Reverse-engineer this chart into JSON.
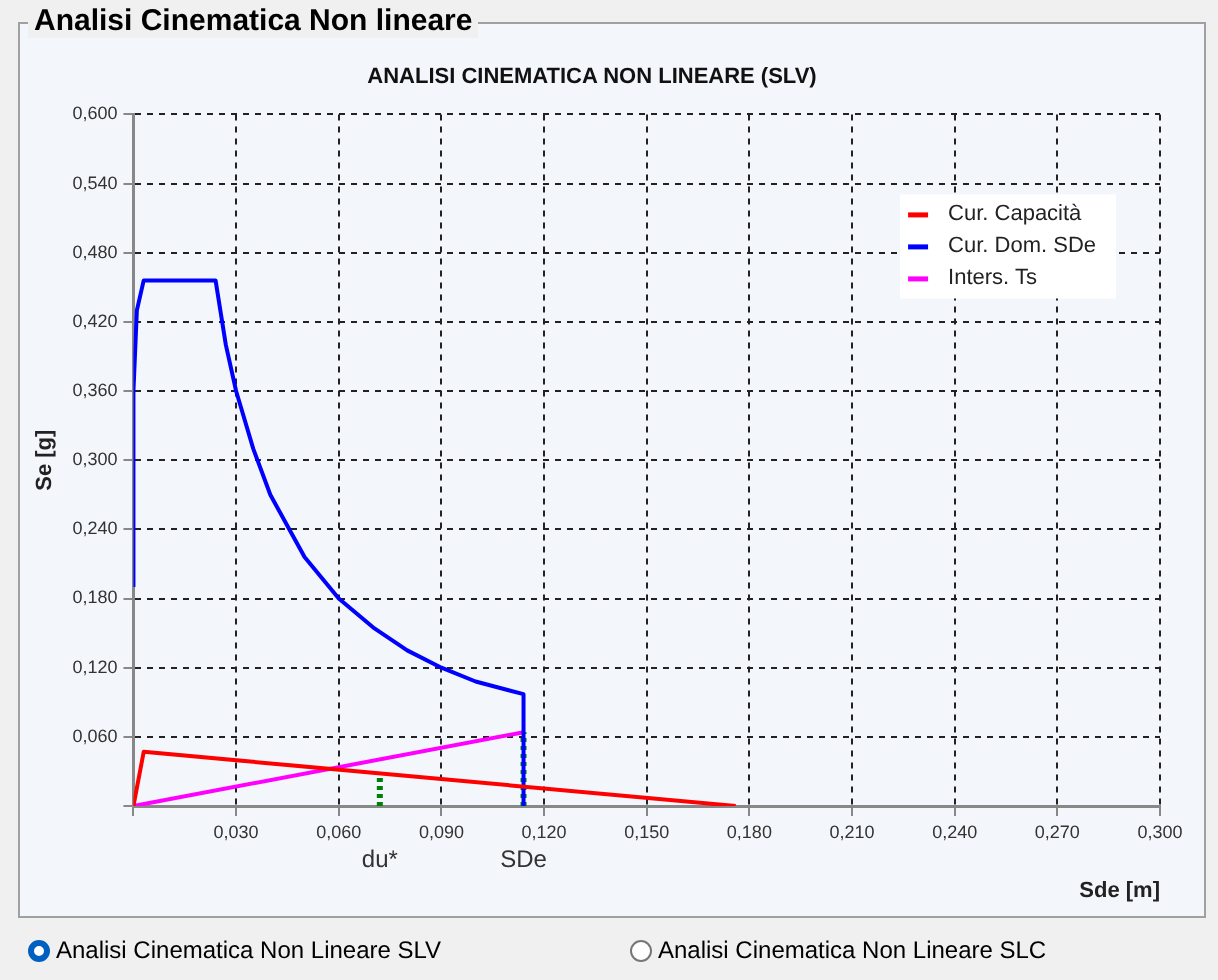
{
  "chart_data": {
    "type": "line",
    "title": "ANALISI CINEMATICA NON LINEARE (SLV)",
    "xlabel": "Sde [m]",
    "ylabel": "Se [g]",
    "xlim": [
      0,
      0.3
    ],
    "ylim": [
      0,
      0.6
    ],
    "xticks": [
      {
        "value": 0,
        "label": null
      },
      {
        "value": 0.03,
        "label": "0,030"
      },
      {
        "value": 0.06,
        "label": "0,060"
      },
      {
        "value": 0.09,
        "label": "0,090"
      },
      {
        "value": 0.12,
        "label": "0,120"
      },
      {
        "value": 0.15,
        "label": "0,150"
      },
      {
        "value": 0.18,
        "label": "0,180"
      },
      {
        "value": 0.21,
        "label": "0,210"
      },
      {
        "value": 0.24,
        "label": "0,240"
      },
      {
        "value": 0.27,
        "label": "0,270"
      },
      {
        "value": 0.3,
        "label": "0,300"
      }
    ],
    "yticks": [
      {
        "value": 0,
        "label": null
      },
      {
        "value": 0.06,
        "label": "0,060"
      },
      {
        "value": 0.12,
        "label": "0,120"
      },
      {
        "value": 0.18,
        "label": "0,180"
      },
      {
        "value": 0.24,
        "label": "0,240"
      },
      {
        "value": 0.3,
        "label": "0,300"
      },
      {
        "value": 0.36,
        "label": "0,360"
      },
      {
        "value": 0.42,
        "label": "0,420"
      },
      {
        "value": 0.48,
        "label": "0,480"
      },
      {
        "value": 0.54,
        "label": "0,540"
      },
      {
        "value": 0.6,
        "label": "0,600"
      }
    ],
    "grid": true,
    "legend": "top right",
    "marker": "none",
    "series": [
      {
        "name": "Cur. Capacità",
        "color": "#ff0000",
        "x": [
          0,
          0.003,
          0.176
        ],
        "values": [
          0,
          0.047,
          0
        ]
      },
      {
        "name": "Cur. Dom. SDe",
        "color": "#0000ff",
        "x": [
          0,
          0,
          0.001,
          0.003,
          0.024,
          0.027,
          0.03,
          0.035,
          0.04,
          0.05,
          0.06,
          0.07,
          0.08,
          0.09,
          0.1,
          0.114,
          0.114
        ],
        "values": [
          0.19,
          0.36,
          0.43,
          0.456,
          0.456,
          0.4,
          0.36,
          0.31,
          0.27,
          0.216,
          0.18,
          0.155,
          0.135,
          0.12,
          0.108,
          0.097,
          0
        ]
      },
      {
        "name": "Inters. Ts",
        "color": "#ff00ff",
        "x": [
          0,
          0.114
        ],
        "values": [
          0,
          0.064
        ]
      },
      {
        "color": "#008000",
        "line_style": "dotted",
        "x": [
          0.072,
          0.072
        ],
        "values": [
          0,
          0.026
        ]
      },
      {
        "color": "#008000",
        "line_style": "dotted",
        "x": [
          0.114,
          0.114
        ],
        "values": [
          0,
          0.064
        ]
      }
    ],
    "annotations": [
      {
        "text": "du*",
        "x": 0.072,
        "y": 0
      },
      {
        "text": "SDe",
        "x": 0.114,
        "y": 0
      },
      "Analisi Cinematica Non lineare",
      "Analisi Cinematica Non Lineare SLV",
      "Analisi Cinematica Non Lineare SLC"
    ]
  }
}
